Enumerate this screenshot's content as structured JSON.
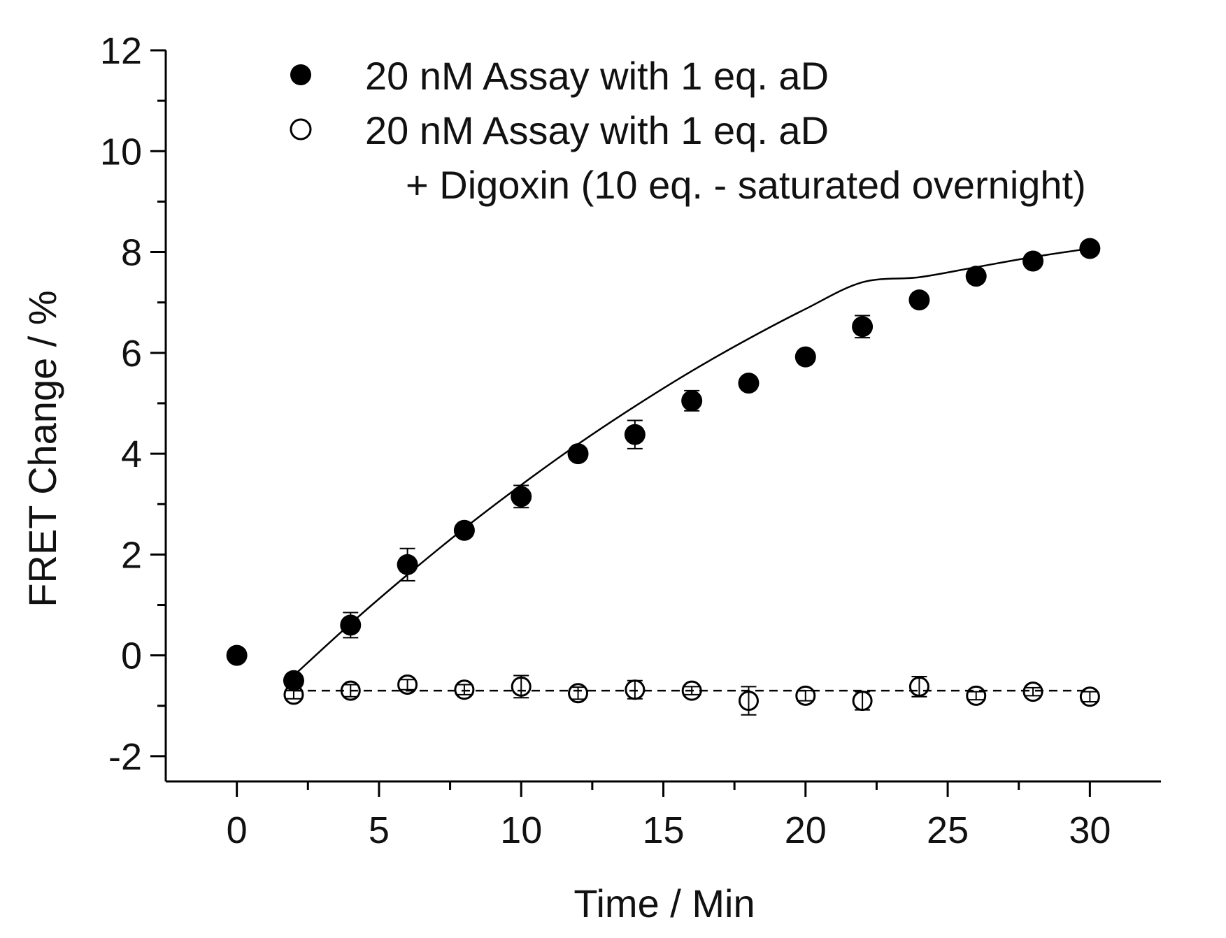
{
  "chart_data": {
    "type": "scatter",
    "xlabel": "Time / Min",
    "ylabel": "FRET Change / %",
    "xlim": [
      -2.5,
      32.5
    ],
    "ylim": [
      -2.5,
      12
    ],
    "xticks": [
      0,
      5,
      10,
      15,
      20,
      25,
      30
    ],
    "xtick_labels": [
      "0",
      "5",
      "10",
      "15",
      "20",
      "25",
      "30"
    ],
    "xminor": [
      2.5,
      7.5,
      12.5,
      17.5,
      22.5,
      27.5
    ],
    "yticks": [
      -2,
      0,
      2,
      4,
      6,
      8,
      10,
      12
    ],
    "ytick_labels": [
      "-2",
      "0",
      "2",
      "4",
      "6",
      "8",
      "10",
      "12"
    ],
    "yminor": [
      -1,
      1,
      3,
      5,
      7,
      9,
      11
    ],
    "grid": false,
    "legend_position": "top",
    "colors": {
      "axis": "#000000",
      "marker": "#000000",
      "open_fill": "#ffffff"
    },
    "series": [
      {
        "name": "20 nM Assay with 1 eq. aD",
        "marker": "filled-circle",
        "x": [
          0,
          2,
          4,
          6,
          8,
          10,
          12,
          14,
          16,
          18,
          20,
          22,
          24,
          26,
          28,
          30
        ],
        "y": [
          0,
          -0.5,
          0.6,
          1.8,
          2.48,
          3.15,
          4.0,
          4.38,
          5.05,
          5.4,
          5.92,
          6.52,
          7.05,
          7.52,
          7.82,
          8.07
        ],
        "yerr": [
          0,
          0.1,
          0.25,
          0.32,
          0.12,
          0.22,
          0.08,
          0.28,
          0.2,
          0.1,
          0.1,
          0.22,
          0.12,
          0.1,
          0.1,
          0.08
        ],
        "fit": {
          "style": "solid",
          "x": [
            2,
            4,
            6,
            8,
            10,
            12,
            14,
            16,
            18,
            20,
            22,
            24,
            26,
            28,
            30
          ],
          "y": [
            -0.4,
            0.63,
            1.6,
            2.52,
            3.38,
            4.19,
            4.94,
            5.64,
            6.28,
            6.87,
            7.4,
            7.5,
            7.7,
            7.9,
            8.07
          ]
        }
      },
      {
        "name": "20 nM Assay with 1 eq. aD",
        "name_line2": "+ Digoxin (10 eq. - saturated overnight)",
        "marker": "open-circle",
        "x": [
          2,
          4,
          6,
          8,
          10,
          12,
          14,
          16,
          18,
          20,
          22,
          24,
          26,
          28,
          30
        ],
        "y": [
          -0.78,
          -0.7,
          -0.58,
          -0.68,
          -0.62,
          -0.75,
          -0.68,
          -0.7,
          -0.9,
          -0.8,
          -0.9,
          -0.62,
          -0.8,
          -0.72,
          -0.82
        ],
        "yerr": [
          0.08,
          0.12,
          0.1,
          0.1,
          0.22,
          0.12,
          0.18,
          0.08,
          0.28,
          0.1,
          0.18,
          0.2,
          0.08,
          0.08,
          0.1
        ],
        "fit": {
          "style": "dashed",
          "x": [
            2,
            30
          ],
          "y": [
            -0.7,
            -0.7
          ]
        }
      }
    ]
  }
}
